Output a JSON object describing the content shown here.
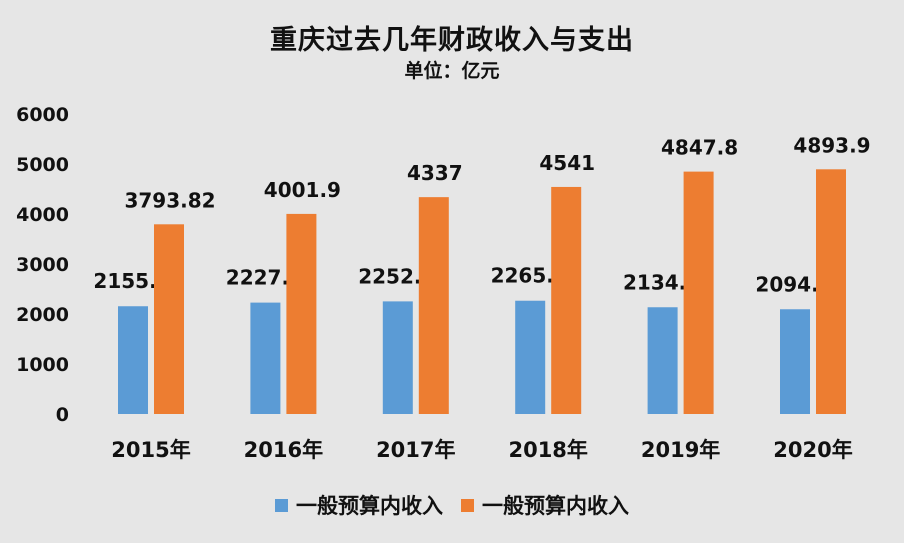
{
  "chart_data": {
    "type": "bar",
    "title": "重庆过去几年财政收入与支出",
    "subtitle": "单位：亿元",
    "categories": [
      "2015年",
      "2016年",
      "2017年",
      "2018年",
      "2019年",
      "2020年"
    ],
    "series": [
      {
        "name": "一般预算内收入",
        "color": "#5b9bd5",
        "values": [
          2155.1,
          2227.9,
          2252.4,
          2265.5,
          2134.9,
          2094.8
        ],
        "labels": [
          "2155.1",
          "2227.9",
          "2252.4",
          "2265.5",
          "2134.9",
          "2094.8"
        ]
      },
      {
        "name": "一般预算内收入",
        "color": "#ed7d31",
        "values": [
          3793.82,
          4001.9,
          4337,
          4541,
          4847.8,
          4893.9
        ],
        "labels": [
          "3793.82",
          "4001.9",
          "4337",
          "4541",
          "4847.8",
          "4893.9"
        ]
      }
    ],
    "yticks": [
      "0",
      "1000",
      "2000",
      "3000",
      "4000",
      "5000",
      "6000"
    ],
    "ylim": [
      0,
      6000
    ],
    "grid": false,
    "legend_position": "bottom"
  }
}
